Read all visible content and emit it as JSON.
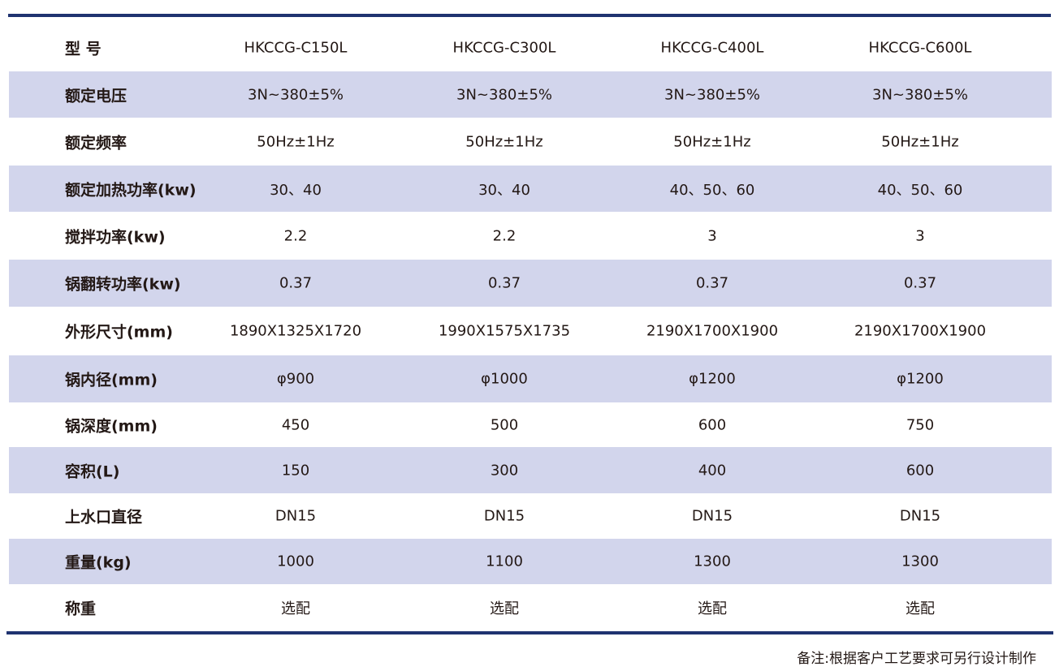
{
  "colors": {
    "rule": "#1f3370",
    "shade": "#d2d5ec"
  },
  "rows": [
    {
      "label": "型 号",
      "values": [
        "HKCCG-C150L",
        "HKCCG-C300L",
        "HKCCG-C400L",
        "HKCCG-C600L"
      ]
    },
    {
      "label": "额定电压",
      "values": [
        "3N~380±5%",
        "3N~380±5%",
        "3N~380±5%",
        "3N~380±5%"
      ]
    },
    {
      "label": "额定频率",
      "values": [
        "50Hz±1Hz",
        "50Hz±1Hz",
        "50Hz±1Hz",
        "50Hz±1Hz"
      ]
    },
    {
      "label": "额定加热功率(kw)",
      "values": [
        "30、40",
        "30、40",
        "40、50、60",
        "40、50、60"
      ]
    },
    {
      "label": "搅拌功率(kw)",
      "values": [
        "2.2",
        "2.2",
        "3",
        "3"
      ]
    },
    {
      "label": "锅翻转功率(kw)",
      "values": [
        "0.37",
        "0.37",
        "0.37",
        "0.37"
      ]
    },
    {
      "label": "外形尺寸(mm)",
      "values": [
        "1890X1325X1720",
        "1990X1575X1735",
        "2190X1700X1900",
        "2190X1700X1900"
      ]
    },
    {
      "label": "锅内径(mm)",
      "values": [
        "φ900",
        "φ1000",
        "φ1200",
        "φ1200"
      ]
    },
    {
      "label": "锅深度(mm)",
      "values": [
        "450",
        "500",
        "600",
        "750"
      ]
    },
    {
      "label": "容积(L)",
      "values": [
        "150",
        "300",
        "400",
        "600"
      ]
    },
    {
      "label": "上水口直径",
      "values": [
        "DN15",
        "DN15",
        "DN15",
        "DN15"
      ]
    },
    {
      "label": "重量(kg)",
      "values": [
        "1000",
        "1100",
        "1300",
        "1300"
      ]
    },
    {
      "label": "称重",
      "values": [
        "选配",
        "选配",
        "选配",
        "选配"
      ]
    }
  ],
  "note": "备注:根据客户工艺要求可另行设计制作"
}
